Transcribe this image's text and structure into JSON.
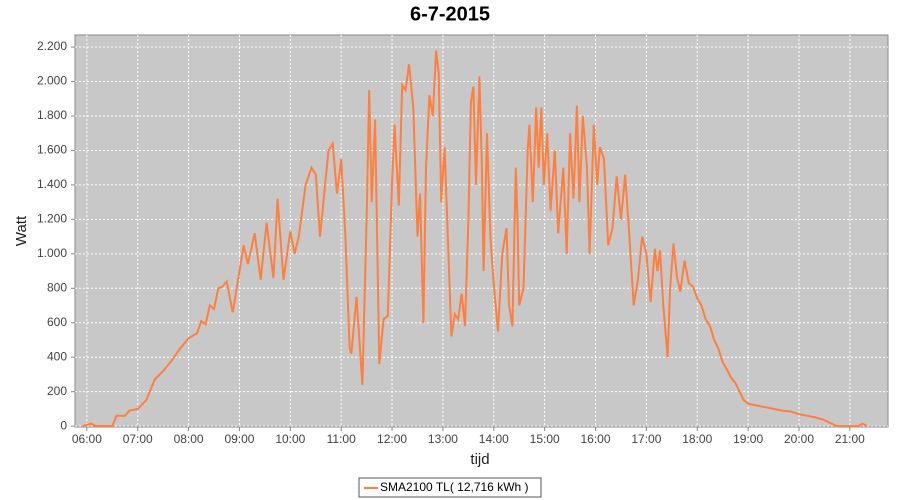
{
  "chart_data": {
    "type": "line",
    "title": "6-7-2015",
    "x_label": "tijd",
    "y_label": "Watt",
    "xlim": [
      "05:46",
      "21:45"
    ],
    "xticks": [
      "06:00",
      "07:00",
      "08:00",
      "09:00",
      "10:00",
      "11:00",
      "12:00",
      "13:00",
      "14:00",
      "15:00",
      "16:00",
      "17:00",
      "18:00",
      "19:00",
      "20:00",
      "21:00"
    ],
    "ylim": [
      -5,
      2270
    ],
    "yticks": [
      0,
      200,
      400,
      600,
      800,
      {
        "value": 1000,
        "label": "1.000"
      },
      {
        "value": 1200,
        "label": "1.200"
      },
      {
        "value": 1400,
        "label": "1.400"
      },
      {
        "value": 1600,
        "label": "1.600"
      },
      {
        "value": 1800,
        "label": "1.800"
      },
      {
        "value": 2000,
        "label": "2.000"
      },
      {
        "value": 2200,
        "label": "2.200"
      }
    ],
    "grid": true,
    "legend": "bottom",
    "x": [
      "05:55",
      "06:05",
      "06:10",
      "06:30",
      "06:35",
      "06:45",
      "06:50",
      "07:00",
      "07:10",
      "07:20",
      "07:30",
      "07:40",
      "07:50",
      "08:00",
      "08:10",
      "08:15",
      "08:20",
      "08:25",
      "08:30",
      "08:35",
      "08:40",
      "08:45",
      "08:52",
      "09:00",
      "09:05",
      "09:10",
      "09:18",
      "09:25",
      "09:32",
      "09:40",
      "09:45",
      "09:52",
      "10:00",
      "10:05",
      "10:10",
      "10:18",
      "10:25",
      "10:30",
      "10:35",
      "10:45",
      "10:50",
      "10:55",
      "11:00",
      "11:05",
      "11:10",
      "11:12",
      "11:18",
      "11:25",
      "11:30",
      "11:33",
      "11:36",
      "11:40",
      "11:45",
      "11:50",
      "11:55",
      "12:00",
      "12:03",
      "12:08",
      "12:12",
      "12:16",
      "12:20",
      "12:25",
      "12:30",
      "12:33",
      "12:37",
      "12:40",
      "12:44",
      "12:48",
      "12:52",
      "12:55",
      "12:58",
      "13:02",
      "13:05",
      "13:10",
      "13:14",
      "13:18",
      "13:22",
      "13:26",
      "13:30",
      "13:33",
      "13:36",
      "13:39",
      "13:43",
      "13:46",
      "13:48",
      "13:52",
      "13:56",
      "14:00",
      "14:05",
      "14:10",
      "14:15",
      "14:18",
      "14:22",
      "14:26",
      "14:28",
      "14:30",
      "14:35",
      "14:40",
      "14:42",
      "14:46",
      "14:50",
      "14:53",
      "14:56",
      "14:59",
      "15:03",
      "15:07",
      "15:12",
      "15:16",
      "15:22",
      "15:26",
      "15:30",
      "15:34",
      "15:38",
      "15:41",
      "15:45",
      "15:50",
      "15:53",
      "15:58",
      "16:02",
      "16:05",
      "16:10",
      "16:15",
      "16:20",
      "16:25",
      "16:30",
      "16:35",
      "16:40",
      "16:45",
      "16:50",
      "16:55",
      "17:00",
      "17:05",
      "17:10",
      "17:13",
      "17:16",
      "17:20",
      "17:25",
      "17:28",
      "17:32",
      "17:36",
      "17:40",
      "17:45",
      "17:50",
      "17:55",
      "18:00",
      "18:05",
      "18:10",
      "18:15",
      "18:20",
      "18:25",
      "18:30",
      "18:35",
      "18:40",
      "18:45",
      "18:50",
      "18:55",
      "19:00",
      "19:10",
      "19:20",
      "19:30",
      "19:40",
      "19:50",
      "20:00",
      "20:10",
      "20:20",
      "20:30",
      "20:40",
      "20:45",
      "21:10",
      "21:15",
      "21:20"
    ],
    "series": [
      {
        "name": "SMA2100 TL( 12,716 kWh )",
        "color": "#ff7f3f",
        "values": [
          0,
          15,
          0,
          0,
          60,
          60,
          90,
          100,
          150,
          270,
          320,
          380,
          450,
          510,
          540,
          610,
          590,
          700,
          680,
          800,
          810,
          840,
          660,
          900,
          1050,
          940,
          1120,
          850,
          1180,
          860,
          1320,
          850,
          1130,
          1000,
          1100,
          1400,
          1500,
          1460,
          1100,
          1600,
          1640,
          1350,
          1550,
          1100,
          450,
          420,
          750,
          240,
          1200,
          1950,
          1300,
          1780,
          360,
          620,
          640,
          1420,
          1750,
          1280,
          1980,
          1950,
          2100,
          1850,
          1100,
          1350,
          600,
          1500,
          1920,
          1800,
          2180,
          2050,
          1300,
          1620,
          1200,
          520,
          650,
          620,
          770,
          580,
          1200,
          1880,
          1970,
          1400,
          2030,
          1500,
          900,
          1700,
          1100,
          820,
          550,
          1000,
          1150,
          700,
          580,
          1500,
          1200,
          700,
          800,
          1600,
          1750,
          1300,
          1850,
          1500,
          1850,
          1400,
          1700,
          1250,
          1600,
          1120,
          1500,
          1000,
          1700,
          1320,
          1860,
          1300,
          1800,
          1500,
          1000,
          1750,
          1400,
          1620,
          1550,
          1050,
          1150,
          1450,
          1200,
          1460,
          1100,
          700,
          850,
          1100,
          1000,
          720,
          1030,
          900,
          1020,
          700,
          400,
          800,
          1060,
          870,
          780,
          960,
          830,
          810,
          740,
          700,
          620,
          580,
          500,
          450,
          370,
          330,
          280,
          250,
          200,
          150,
          130,
          120,
          110,
          100,
          90,
          85,
          70,
          60,
          50,
          35,
          10,
          0,
          0,
          15,
          0
        ]
      }
    ]
  }
}
